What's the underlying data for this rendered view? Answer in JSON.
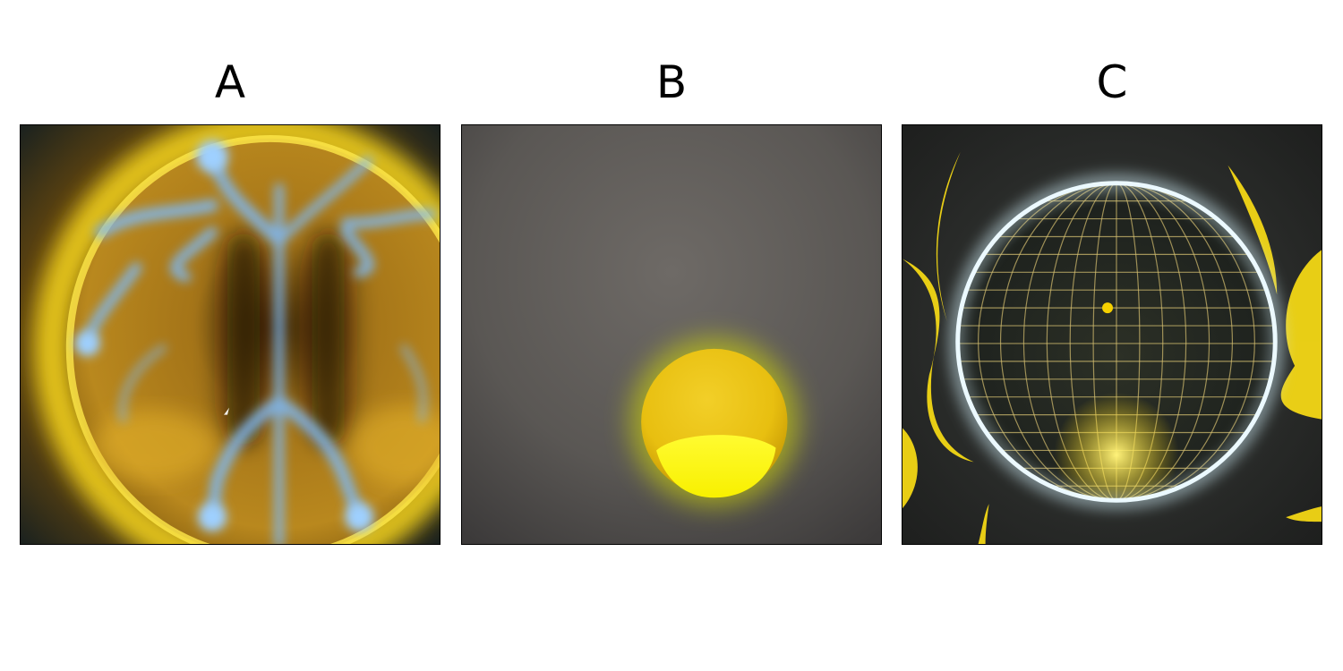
{
  "panels": [
    {
      "label": "A",
      "image": "amber-sphere-with-blue-lightning-veins"
    },
    {
      "label": "B",
      "image": "glowing-yellow-ball-on-gray-backdrop"
    },
    {
      "label": "C",
      "image": "wireframe-grid-globe-with-yellow-flames"
    }
  ],
  "colors": {
    "background": "#ffffff",
    "frame": "#000000",
    "amber": "#b8861a",
    "lightning_blue": "#79b6f0",
    "yellow_glow": "#f5e100",
    "gray_backdrop": "#5e5b58",
    "dark_backdrop": "#2a2b2a"
  }
}
